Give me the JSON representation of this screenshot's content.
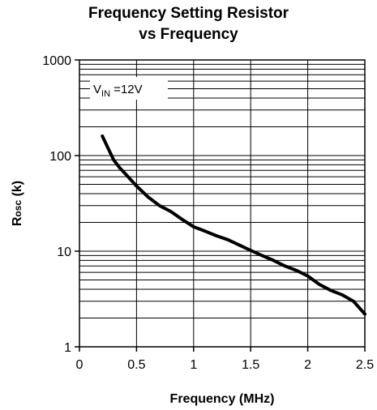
{
  "chart_data": {
    "type": "line",
    "title_line1": "Frequency Setting Resistor",
    "title_line2": "vs Frequency",
    "xlabel": "Frequency (MHz)",
    "ylabel_main": "R",
    "ylabel_sub": "osc",
    "ylabel_unit": " (k)",
    "xlim": [
      0,
      2.5
    ],
    "ylim": [
      1,
      1000
    ],
    "yscale": "log",
    "grid": true,
    "x_ticks": [
      "0",
      "0.5",
      "1",
      "1.5",
      "2",
      "2.5"
    ],
    "y_ticks": [
      "1",
      "10",
      "100",
      "1000"
    ],
    "annotation": {
      "main": "V",
      "sub": "IN",
      "rest": " =12V"
    },
    "series": [
      {
        "x": [
          0.2,
          0.25,
          0.3,
          0.35,
          0.4,
          0.5,
          0.6,
          0.7,
          0.8,
          0.9,
          1.0,
          1.1,
          1.2,
          1.3,
          1.4,
          1.5,
          1.6,
          1.7,
          1.8,
          1.9,
          2.0,
          2.1,
          2.2,
          2.3,
          2.4,
          2.5
        ],
        "y": [
          160,
          120,
          90,
          75,
          65,
          48,
          37,
          30,
          26,
          21.5,
          18,
          16.2,
          14.5,
          13.2,
          11.6,
          10.2,
          9.0,
          8.0,
          7.0,
          6.3,
          5.5,
          4.5,
          3.9,
          3.5,
          3.0,
          2.2
        ]
      }
    ]
  }
}
